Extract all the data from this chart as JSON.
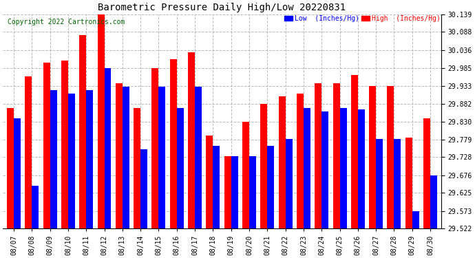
{
  "title": "Barometric Pressure Daily High/Low 20220831",
  "copyright": "Copyright 2022 Cartronics.com",
  "dates": [
    "08/07",
    "08/08",
    "08/09",
    "08/10",
    "08/11",
    "08/12",
    "08/13",
    "08/14",
    "08/15",
    "08/16",
    "08/17",
    "08/18",
    "08/19",
    "08/20",
    "08/21",
    "08/22",
    "08/23",
    "08/24",
    "08/25",
    "08/26",
    "08/27",
    "08/28",
    "08/29",
    "08/30"
  ],
  "highs": [
    29.87,
    29.96,
    30.0,
    30.005,
    30.08,
    30.16,
    29.94,
    29.87,
    29.985,
    30.01,
    30.03,
    29.79,
    29.73,
    29.83,
    29.882,
    29.902,
    29.91,
    29.94,
    29.94,
    29.965,
    29.933,
    29.933,
    29.785,
    29.84
  ],
  "lows": [
    29.84,
    29.645,
    29.92,
    29.91,
    29.92,
    29.985,
    29.93,
    29.75,
    29.93,
    29.87,
    29.93,
    29.76,
    29.73,
    29.73,
    29.76,
    29.78,
    29.87,
    29.86,
    29.87,
    29.865,
    29.78,
    29.78,
    29.573,
    29.676
  ],
  "ymin": 29.522,
  "ymax": 30.139,
  "yticks": [
    30.139,
    30.088,
    30.036,
    29.985,
    29.933,
    29.882,
    29.83,
    29.779,
    29.728,
    29.676,
    29.625,
    29.573,
    29.522
  ],
  "high_color": "#ff0000",
  "low_color": "#0000ff",
  "bg_color": "#ffffff",
  "grid_color": "#aaaaaa",
  "bar_width": 0.38,
  "legend_low_label": "Low  (Inches/Hg)",
  "legend_high_label": "High  (Inches/Hg)",
  "copyright_color": "#006600",
  "title_fontsize": 10,
  "tick_fontsize": 7,
  "copyright_fontsize": 7
}
